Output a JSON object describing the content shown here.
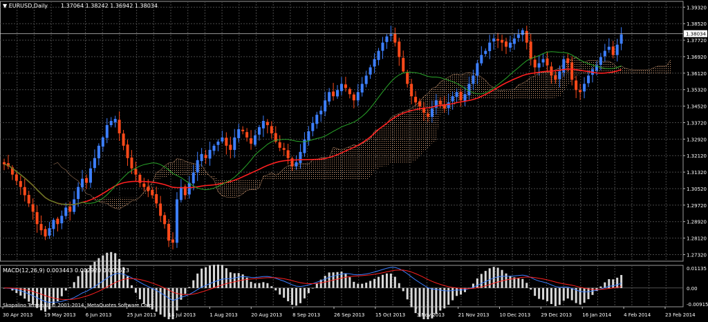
{
  "header": {
    "symbol_label": "▼ EURUSD,Daily",
    "ohlc": "1.37064 1.38242 1.36942 1.38034"
  },
  "macd_header": "MACD(12,26,9) 0.003443 0.002920 0.000523",
  "footer": "Skopalino Terminal, © 2001-2014, MetaQuotes Software Corp.",
  "colors": {
    "background": "#000000",
    "grid": "#4a4a4a",
    "bull": "#3d7fff",
    "bear": "#ff4a1a",
    "kumo": "#d9a27a",
    "ma_slow": "#ff2020",
    "ma_fast": "#2aa62a",
    "macd_line": "#3d7fff",
    "signal_line": "#ff2020",
    "histogram": "#d8d8d8",
    "current_price_line": "#cfcfcf"
  },
  "chart_data": [
    {
      "type": "candlestick",
      "instrument": "EURUSD",
      "timeframe": "Daily",
      "current_price": 1.38034,
      "ylim": [
        1.27,
        1.396
      ],
      "y_ticks": [
        1.3932,
        1.3852,
        1.3772,
        1.3692,
        1.3612,
        1.3532,
        1.3452,
        1.3372,
        1.3292,
        1.3212,
        1.3132,
        1.3052,
        1.2972,
        1.2892,
        1.2812,
        1.2732
      ],
      "y_tick_labels": [
        "1.39320",
        "1.38520",
        "1.37720",
        "1.36920",
        "1.36120",
        "1.35320",
        "1.34520",
        "1.33720",
        "1.32920",
        "1.32120",
        "1.31320",
        "1.30520",
        "1.29720",
        "1.28920",
        "1.28120",
        "1.27320"
      ],
      "x_tick_labels": [
        "30 Apr 2013",
        "19 May 2013",
        "6 Jun 2013",
        "25 Jun 2013",
        "14 Jul 2013",
        "1 Aug 2013",
        "20 Aug 2013",
        "8 Sep 2013",
        "26 Sep 2013",
        "15 Oct 2013",
        "3 Nov 2013",
        "21 Nov 2013",
        "10 Dec 2013",
        "29 Dec 2013",
        "16 Jan 2014",
        "4 Feb 2014",
        "23 Feb 2014"
      ],
      "closes": [
        1.317,
        1.316,
        1.312,
        1.309,
        1.306,
        1.302,
        1.298,
        1.294,
        1.288,
        1.285,
        1.282,
        1.286,
        1.29,
        1.288,
        1.292,
        1.296,
        1.294,
        1.3,
        1.306,
        1.31,
        1.308,
        1.315,
        1.32,
        1.326,
        1.33,
        1.336,
        1.338,
        1.339,
        1.332,
        1.326,
        1.32,
        1.315,
        1.312,
        1.308,
        1.306,
        1.304,
        1.302,
        1.298,
        1.292,
        1.288,
        1.28,
        1.279,
        1.3,
        1.306,
        1.302,
        1.308,
        1.313,
        1.319,
        1.322,
        1.32,
        1.324,
        1.326,
        1.328,
        1.33,
        1.326,
        1.324,
        1.33,
        1.334,
        1.333,
        1.33,
        1.327,
        1.331,
        1.335,
        1.338,
        1.336,
        1.332,
        1.328,
        1.325,
        1.324,
        1.32,
        1.316,
        1.318,
        1.323,
        1.329,
        1.333,
        1.337,
        1.341,
        1.343,
        1.348,
        1.352,
        1.35,
        1.353,
        1.356,
        1.354,
        1.351,
        1.348,
        1.352,
        1.356,
        1.36,
        1.364,
        1.368,
        1.372,
        1.376,
        1.379,
        1.38,
        1.376,
        1.369,
        1.362,
        1.356,
        1.35,
        1.347,
        1.345,
        1.342,
        1.34,
        1.344,
        1.348,
        1.346,
        1.344,
        1.347,
        1.35,
        1.352,
        1.348,
        1.351,
        1.356,
        1.36,
        1.366,
        1.37,
        1.372,
        1.376,
        1.378,
        1.377,
        1.376,
        1.374,
        1.376,
        1.378,
        1.38,
        1.382,
        1.376,
        1.368,
        1.364,
        1.366,
        1.368,
        1.365,
        1.36,
        1.358,
        1.362,
        1.368,
        1.366,
        1.358,
        1.353,
        1.352,
        1.356,
        1.36,
        1.363,
        1.365,
        1.369,
        1.372,
        1.374,
        1.37,
        1.375,
        1.38
      ]
    },
    {
      "type": "line",
      "indicator": "MACD(12,26,9)",
      "values_shown": [
        0.003443,
        0.00292,
        0.000523
      ],
      "y_tick_labels": [
        "0.01135",
        "0.00",
        "-0.009157"
      ]
    }
  ]
}
